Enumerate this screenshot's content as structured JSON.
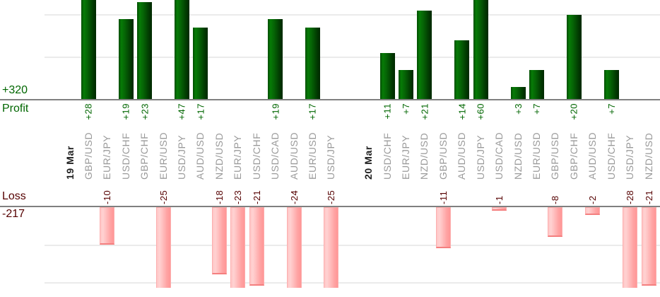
{
  "chart_data": {
    "type": "bar",
    "title": "",
    "profit_axis": {
      "label": "Profit",
      "total": "+320",
      "gridlines": [
        10,
        20
      ]
    },
    "loss_axis": {
      "label": "Loss",
      "total": "-217",
      "gridlines": [
        -10,
        -20
      ]
    },
    "groups": [
      {
        "date": "19 Mar",
        "trades": [
          {
            "pair": "GBP/USD",
            "value": 28
          },
          {
            "pair": "EUR/JPY",
            "value": -10
          },
          {
            "pair": "USD/CHF",
            "value": 19
          },
          {
            "pair": "GBP/CHF",
            "value": 23
          },
          {
            "pair": "EUR/USD",
            "value": -25
          },
          {
            "pair": "USD/JPY",
            "value": 47
          },
          {
            "pair": "AUD/USD",
            "value": 17
          },
          {
            "pair": "NZD/USD",
            "value": -18
          },
          {
            "pair": "EUR/JPY",
            "value": -23
          },
          {
            "pair": "USD/CHF",
            "value": -21
          },
          {
            "pair": "USD/CAD",
            "value": 19
          },
          {
            "pair": "AUD/USD",
            "value": -24
          },
          {
            "pair": "EUR/USD",
            "value": 17
          },
          {
            "pair": "USD/JPY",
            "value": -25
          }
        ]
      },
      {
        "date": "20 Mar",
        "trades": [
          {
            "pair": "USD/CHF",
            "value": 11
          },
          {
            "pair": "EUR/JPY",
            "value": 7
          },
          {
            "pair": "NZD/USD",
            "value": 21
          },
          {
            "pair": "GBP/USD",
            "value": -11
          },
          {
            "pair": "AUD/USD",
            "value": 14
          },
          {
            "pair": "USD/JPY",
            "value": 60
          },
          {
            "pair": "USD/CAD",
            "value": -1
          },
          {
            "pair": "NZD/USD",
            "value": 3
          },
          {
            "pair": "EUR/USD",
            "value": 7
          },
          {
            "pair": "GBP/USD",
            "value": -8
          },
          {
            "pair": "GBP/CHF",
            "value": 20
          },
          {
            "pair": "AUD/USD",
            "value": -2
          },
          {
            "pair": "USD/CHF",
            "value": 7
          },
          {
            "pair": "USD/JPY",
            "value": -28
          },
          {
            "pair": "NZD/USD",
            "value": -21
          }
        ]
      }
    ],
    "colors": {
      "background": "#ffffff",
      "profit_text": "#006600",
      "loss_text": "#550000",
      "profit_bar": "#067806",
      "loss_bar": "#ffa8a8",
      "pair_label": "#9a9a9a",
      "date_label": "#222222",
      "axis_line": "#808080",
      "gridline": "#ebebeb"
    }
  }
}
